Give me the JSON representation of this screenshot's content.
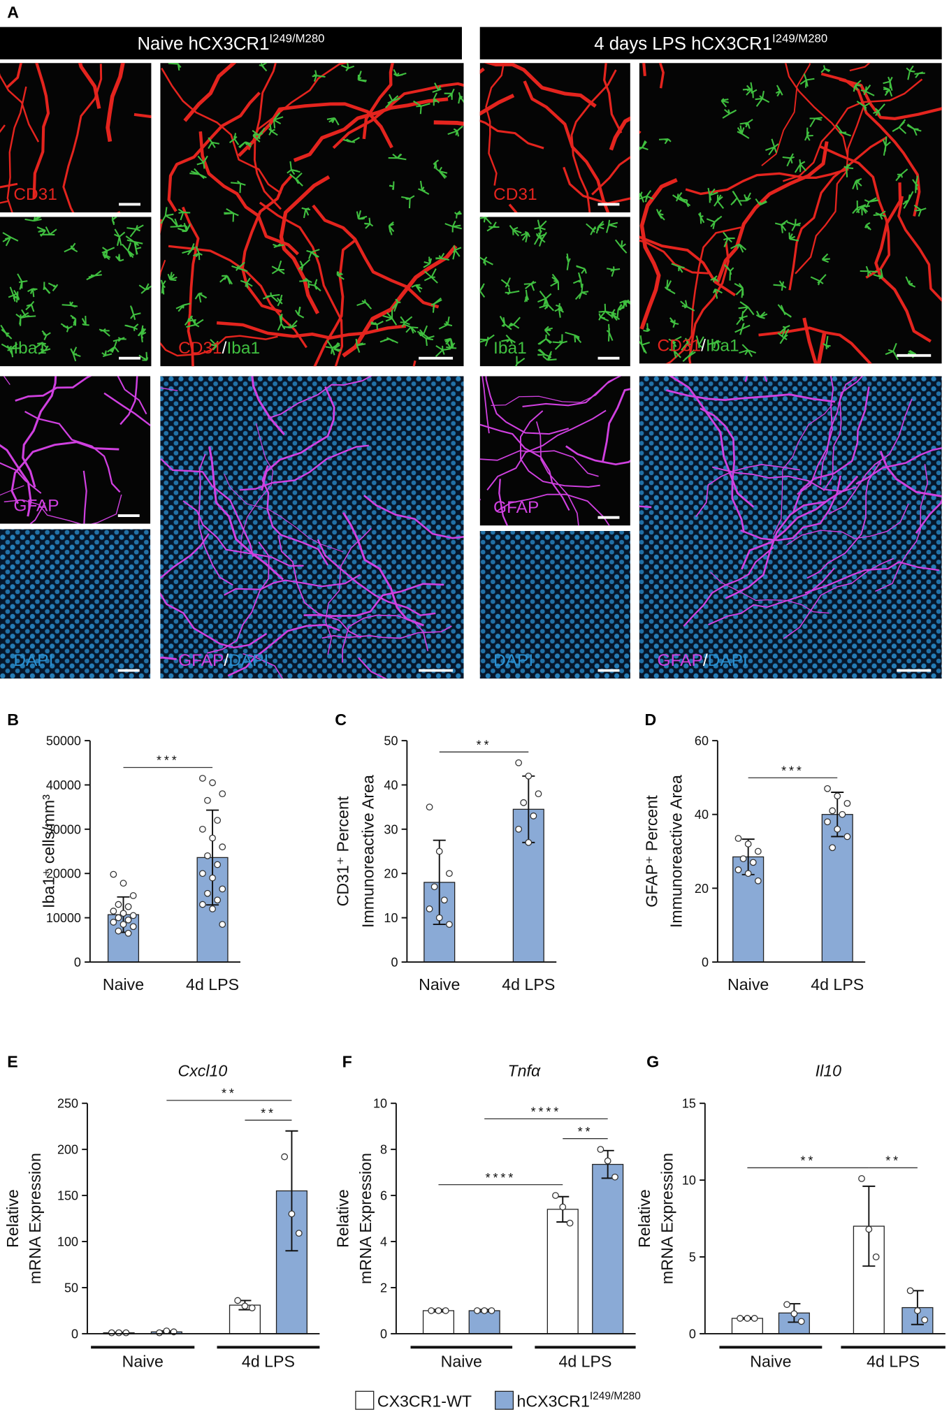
{
  "figure": {
    "panel": "A",
    "headers": [
      {
        "text": "Naive hCX3CR1",
        "sup": "I249/M280"
      },
      {
        "text": "4 days LPS hCX3CR1",
        "sup": "I249/M280"
      }
    ],
    "tiles": [
      [
        {
          "text": "CD31",
          "color": "#e4241e"
        }
      ],
      [
        {
          "text": "Iba1",
          "color": "#40c040"
        }
      ],
      [
        {
          "text": "CD31",
          "color": "#e4241e"
        },
        {
          "text": "/",
          "color": "#ffffff"
        },
        {
          "text": "Iba1",
          "color": "#40c040"
        }
      ],
      [
        {
          "text": "GFAP",
          "color": "#d040e0"
        }
      ],
      [
        {
          "text": "DAPI",
          "color": "#2a8fd0"
        }
      ],
      [
        {
          "text": "GFAP",
          "color": "#d040e0"
        },
        {
          "text": "/",
          "color": "#ffffff"
        },
        {
          "text": "DAPI",
          "color": "#2a8fd0"
        }
      ],
      [
        {
          "text": "CD31",
          "color": "#e4241e"
        }
      ],
      [
        {
          "text": "Iba1",
          "color": "#40c040"
        }
      ],
      [
        {
          "text": "CD31",
          "color": "#e4241e"
        },
        {
          "text": "/",
          "color": "#ffffff"
        },
        {
          "text": "Iba1",
          "color": "#40c040"
        }
      ],
      [
        {
          "text": "GFAP",
          "color": "#d040e0"
        }
      ],
      [
        {
          "text": "DAPI",
          "color": "#2a8fd0"
        }
      ],
      [
        {
          "text": "GFAP",
          "color": "#d040e0"
        },
        {
          "text": "/",
          "color": "#ffffff"
        },
        {
          "text": "DAPI",
          "color": "#2a8fd0"
        }
      ]
    ]
  },
  "chart_data": [
    {
      "type": "bar",
      "panel": "B",
      "ylabel": [
        "Iba1⁺ cells/mm³"
      ],
      "categories": [
        "Naive",
        "4d LPS"
      ],
      "values": [
        10700,
        23600
      ],
      "errors": [
        4000,
        10700
      ],
      "color": "#8aaad6",
      "points": [
        [
          19800,
          17800,
          15000,
          13000,
          12500,
          11500,
          11000,
          10500,
          10000,
          9500,
          9000,
          8500,
          8000,
          7000,
          6500
        ],
        [
          41500,
          40500,
          38000,
          36500,
          32000,
          30000,
          28000,
          26000,
          24000,
          22000,
          20000,
          19000,
          16500,
          15500,
          14000,
          13000,
          12000,
          8500
        ]
      ],
      "ylim": [
        0,
        50000
      ],
      "yticks": [
        0,
        10000,
        20000,
        30000,
        40000,
        50000
      ],
      "significance": [
        {
          "bars": [
            0,
            1
          ],
          "label": "***"
        }
      ]
    },
    {
      "type": "bar",
      "panel": "C",
      "ylabel": [
        "CD31⁺ Percent",
        "Immunoreactive Area"
      ],
      "categories": [
        "Naive",
        "4d LPS"
      ],
      "values": [
        18,
        34.5
      ],
      "errors": [
        9.5,
        7.5
      ],
      "color": "#8aaad6",
      "points": [
        [
          35,
          25,
          20,
          17,
          14,
          12,
          10,
          8.5
        ],
        [
          45,
          42,
          38,
          36,
          33,
          30,
          27
        ]
      ],
      "ylim": [
        0,
        50
      ],
      "yticks": [
        0,
        10,
        20,
        30,
        40,
        50
      ],
      "significance": [
        {
          "bars": [
            0,
            1
          ],
          "label": "**"
        }
      ]
    },
    {
      "type": "bar",
      "panel": "D",
      "ylabel": [
        "GFAP⁺ Percent",
        "Immunoreactive Area"
      ],
      "categories": [
        "Naive",
        "4d LPS"
      ],
      "values": [
        28.5,
        40
      ],
      "errors": [
        4.8,
        6
      ],
      "color": "#8aaad6",
      "points": [
        [
          33.5,
          32,
          30,
          28,
          27,
          25,
          24,
          22
        ],
        [
          47,
          45,
          43,
          41,
          40,
          38,
          36,
          34,
          31
        ]
      ],
      "ylim": [
        0,
        60
      ],
      "yticks": [
        0,
        20,
        40,
        60
      ],
      "significance": [
        {
          "bars": [
            0,
            1
          ],
          "label": "***"
        }
      ]
    },
    {
      "type": "bar",
      "panel": "E",
      "title": "Cxcl10",
      "ylabel": [
        "Relative",
        "mRNA Expression"
      ],
      "categories": [
        "Naive",
        "4d LPS"
      ],
      "series": [
        {
          "color": "#ffffff",
          "values": [
            1,
            31
          ],
          "errors": [
            0.5,
            5
          ],
          "points": [
            [
              1,
              1,
              1
            ],
            [
              36,
              30,
              28
            ]
          ]
        },
        {
          "color": "#8aaad6",
          "values": [
            2,
            155
          ],
          "errors": [
            1,
            65
          ],
          "points": [
            [
              1,
              3,
              2
            ],
            [
              192,
              130,
              109
            ]
          ]
        }
      ],
      "ylim": [
        0,
        250
      ],
      "yticks": [
        0,
        50,
        100,
        150,
        200,
        250
      ],
      "significance": [
        {
          "bars": [
            2,
            3
          ],
          "label": "**"
        },
        {
          "bars": [
            1,
            3
          ],
          "label": "**"
        }
      ]
    },
    {
      "type": "bar",
      "panel": "F",
      "title": "Tnfα",
      "ylabel": [
        "Relative",
        "mRNA Expression"
      ],
      "categories": [
        "Naive",
        "4d LPS"
      ],
      "series": [
        {
          "color": "#ffffff",
          "values": [
            1,
            5.4
          ],
          "errors": [
            0.05,
            0.55
          ],
          "points": [
            [
              1,
              1,
              1
            ],
            [
              6,
              5.5,
              4.8
            ]
          ]
        },
        {
          "color": "#8aaad6",
          "values": [
            1,
            7.35
          ],
          "errors": [
            0.05,
            0.6
          ],
          "points": [
            [
              1,
              1,
              1
            ],
            [
              8,
              7.5,
              6.8
            ]
          ]
        }
      ],
      "ylim": [
        0,
        10
      ],
      "yticks": [
        0,
        2,
        4,
        6,
        8,
        10
      ],
      "significance": [
        {
          "bars": [
            2,
            3
          ],
          "label": "**"
        },
        {
          "bars": [
            1,
            3
          ],
          "label": "****"
        },
        {
          "bars": [
            0,
            2
          ],
          "label": "****"
        }
      ]
    },
    {
      "type": "bar",
      "panel": "G",
      "title": "Il10",
      "ylabel": [
        "Relative",
        "mRNA Expression"
      ],
      "categories": [
        "Naive",
        "4d LPS"
      ],
      "series": [
        {
          "color": "#ffffff",
          "values": [
            1,
            7
          ],
          "errors": [
            0.05,
            2.6
          ],
          "points": [
            [
              1,
              1,
              1
            ],
            [
              10.1,
              6.8,
              5
            ]
          ]
        },
        {
          "color": "#8aaad6",
          "values": [
            1.35,
            1.7
          ],
          "errors": [
            0.6,
            1.1
          ],
          "points": [
            [
              1.9,
              1.3,
              0.8
            ],
            [
              2.8,
              1.5,
              0.9
            ]
          ]
        }
      ],
      "ylim": [
        0,
        15
      ],
      "yticks": [
        0,
        5,
        10,
        15
      ],
      "significance": [
        {
          "bars": [
            2,
            3
          ],
          "label": "**"
        },
        {
          "bars": [
            0,
            2
          ],
          "label": "**"
        }
      ]
    }
  ],
  "legend": [
    {
      "text": "CX3CR1-WT",
      "color": "#ffffff"
    },
    {
      "text": "hCX3CR1",
      "sup": "I249/M280",
      "color": "#8aaad6"
    }
  ]
}
